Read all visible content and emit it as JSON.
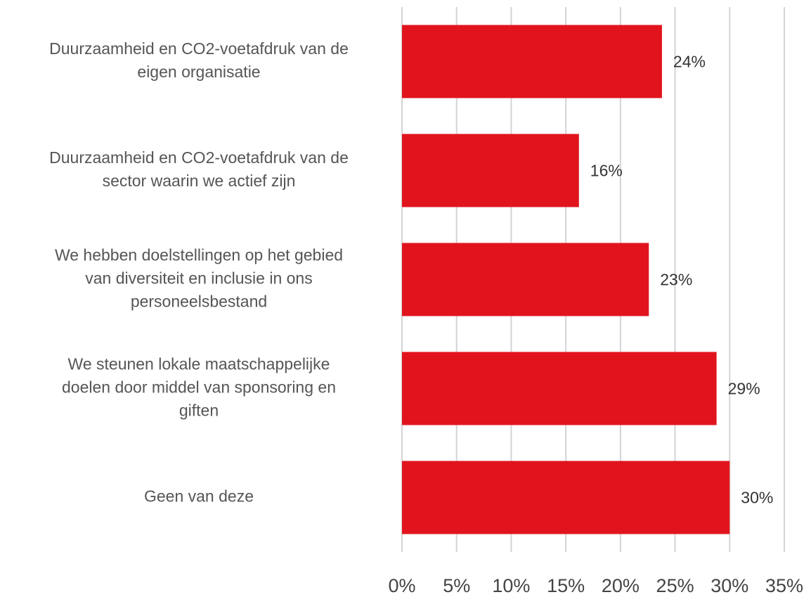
{
  "chart_data": {
    "type": "barh",
    "categories": [
      "Duurzaamheid en CO2-voetafdruk van de\neigen organisatie",
      "Duurzaamheid en CO2-voetafdruk van de\nsector waarin we actief zijn",
      "We hebben doelstellingen op het gebied\nvan diversiteit en inclusie in ons\npersoneelsbestand",
      "We steunen lokale maatschappelijke\ndoelen door middel van sponsoring en\ngiften",
      "Geen van deze"
    ],
    "values": [
      23.8,
      16.2,
      22.6,
      28.8,
      30.0
    ],
    "value_labels": [
      "24%",
      "16%",
      "23%",
      "29%",
      "30%"
    ],
    "color": "#e1141e",
    "xlim": [
      0,
      35
    ],
    "xticks": [
      {
        "value": 0,
        "label": "0%"
      },
      {
        "value": 5,
        "label": "5%"
      },
      {
        "value": 10,
        "label": "10%"
      },
      {
        "value": 15,
        "label": "15%"
      },
      {
        "value": 20,
        "label": "20%"
      },
      {
        "value": 25,
        "label": "25%"
      },
      {
        "value": 30,
        "label": "30%"
      },
      {
        "value": 35,
        "label": "35%"
      }
    ],
    "grid": true
  }
}
